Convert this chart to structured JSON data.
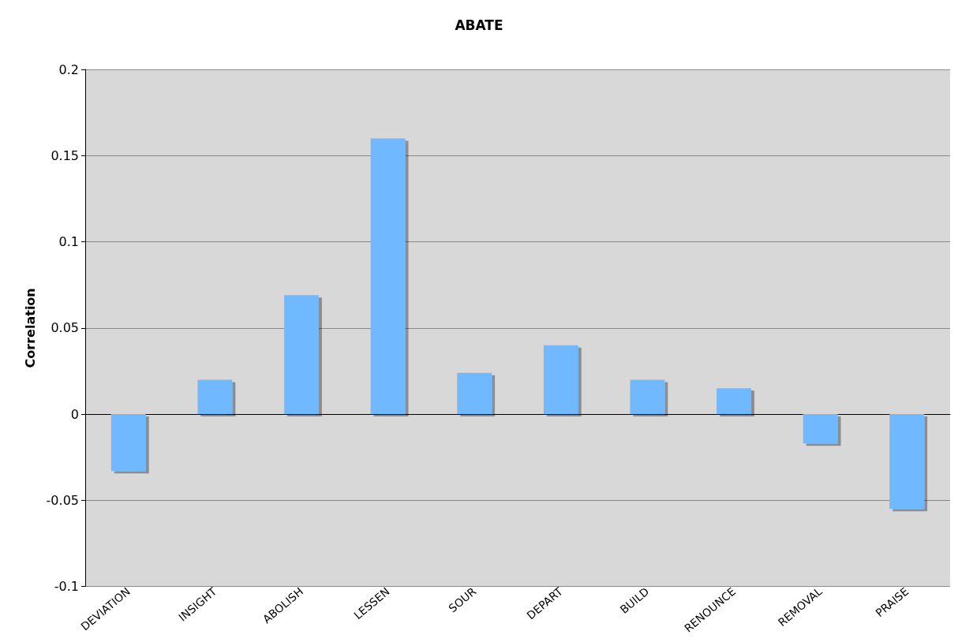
{
  "chart_data": {
    "type": "bar",
    "title": "ABATE",
    "ylabel": "Correlation",
    "categories": [
      "DEVIATION",
      "INSIGHT",
      "ABOLISH",
      "LESSEN",
      "SOUR",
      "DEPART",
      "BUILD",
      "RENOUNCE",
      "REMOVAL",
      "PRAISE"
    ],
    "values": [
      -0.033,
      0.02,
      0.069,
      0.16,
      0.024,
      0.04,
      0.02,
      0.015,
      -0.017,
      -0.055
    ],
    "color": "#70b8ff",
    "ylim": [
      -0.1,
      0.2
    ],
    "yticks": [
      -0.1,
      -0.05,
      0,
      0.05,
      0.1,
      0.15,
      0.2
    ],
    "grid": "y"
  }
}
